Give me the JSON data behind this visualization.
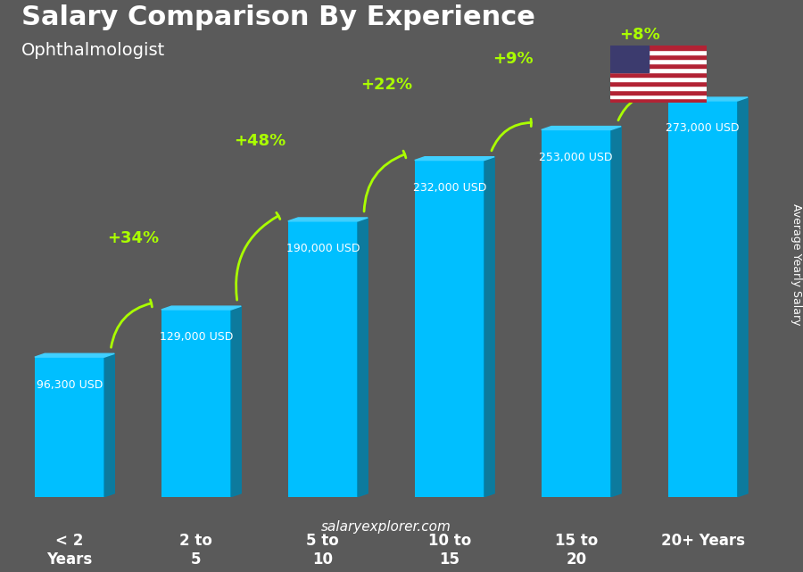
{
  "title": "Salary Comparison By Experience",
  "subtitle": "Ophthalmologist",
  "categories": [
    "< 2 Years",
    "2 to 5",
    "5 to 10",
    "10 to 15",
    "15 to 20",
    "20+ Years"
  ],
  "values": [
    96300,
    129000,
    190000,
    232000,
    253000,
    273000
  ],
  "salary_labels": [
    "96,300 USD",
    "129,000 USD",
    "190,000 USD",
    "232,000 USD",
    "253,000 USD",
    "273,000 USD"
  ],
  "pct_changes": [
    "+34%",
    "+48%",
    "+22%",
    "+9%",
    "+8%"
  ],
  "bar_color_face": "#00BFFF",
  "bar_color_dark": "#0080AA",
  "bar_color_top": "#40D0FF",
  "background_color": "#5a5a5a",
  "title_color": "#ffffff",
  "subtitle_color": "#ffffff",
  "label_color": "#ffffff",
  "pct_color": "#aaff00",
  "ylabel": "Average Yearly Salary",
  "footer": "salaryexplorer.com",
  "ylim": [
    0,
    320000
  ]
}
